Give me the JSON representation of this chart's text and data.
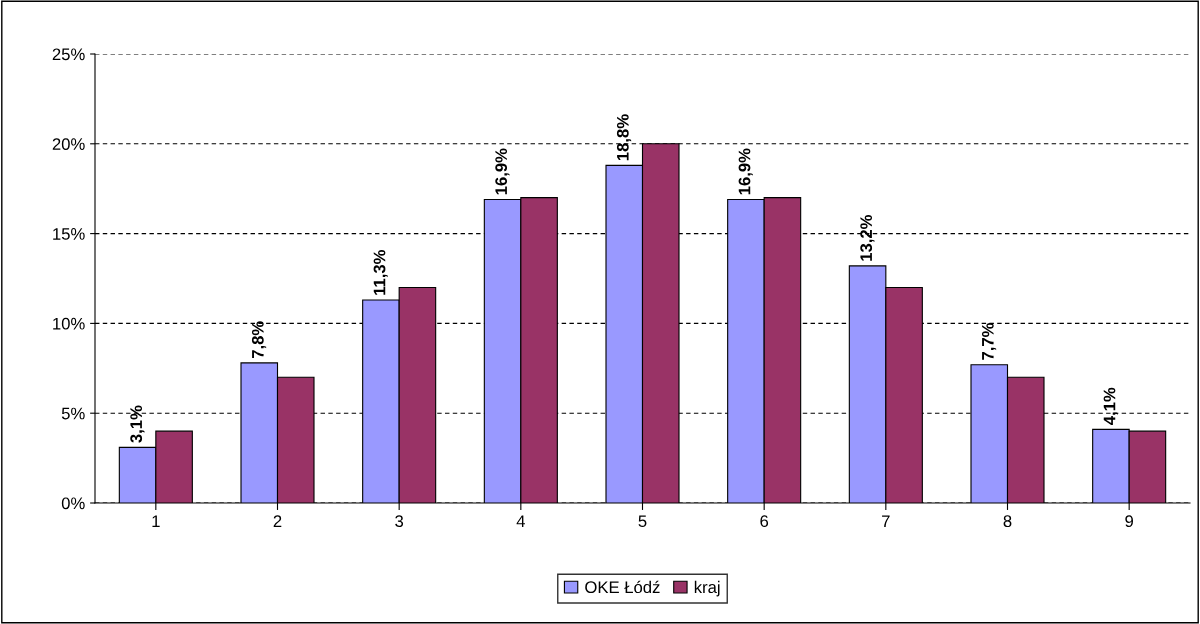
{
  "chart_data": {
    "type": "bar",
    "categories": [
      "1",
      "2",
      "3",
      "4",
      "5",
      "6",
      "7",
      "8",
      "9"
    ],
    "series": [
      {
        "name": "OKE Łódź",
        "color": "#9999ff",
        "values": [
          3.1,
          7.8,
          11.3,
          16.9,
          18.8,
          16.9,
          13.2,
          7.7,
          4.1
        ],
        "value_labels": [
          "3,1%",
          "7,8%",
          "11,3%",
          "16,9%",
          "18,8%",
          "16,9%",
          "13,2%",
          "7,7%",
          "4,1%"
        ]
      },
      {
        "name": "kraj",
        "color": "#993366",
        "values": [
          4,
          7,
          12,
          17,
          20,
          17,
          12,
          7,
          4
        ]
      }
    ],
    "ylim": [
      0,
      25
    ],
    "yticks": [
      {
        "value": 0,
        "label": "0%"
      },
      {
        "value": 5,
        "label": "5%"
      },
      {
        "value": 10,
        "label": "10%"
      },
      {
        "value": 15,
        "label": "15%"
      },
      {
        "value": 20,
        "label": "20%"
      },
      {
        "value": 25,
        "label": "25%"
      }
    ],
    "grid": "y",
    "legend": "bottom"
  }
}
